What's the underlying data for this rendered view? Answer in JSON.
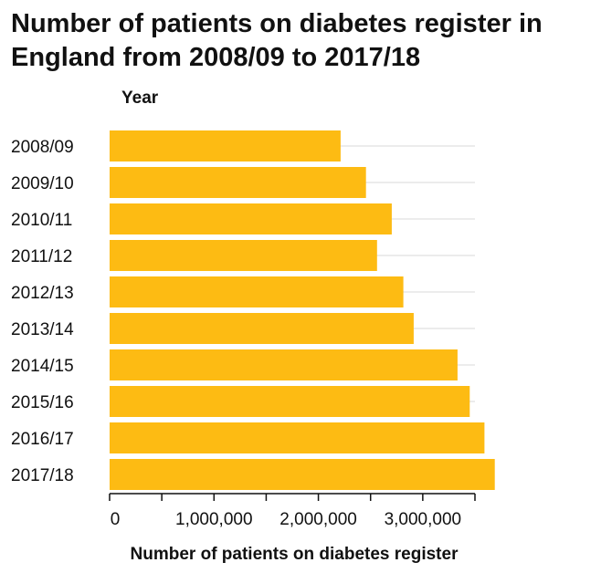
{
  "chart_data": {
    "type": "bar",
    "orientation": "horizontal",
    "title": "Number of patients on diabetes register in England from 2008/09 to 2017/18",
    "xlabel": "Number of patients on diabetes register",
    "ylabel": "Year",
    "categories": [
      "2008/09",
      "2009/10",
      "2010/11",
      "2011/12",
      "2012/13",
      "2013/14",
      "2014/15",
      "2015/16",
      "2016/17",
      "2017/18"
    ],
    "values": [
      2213000,
      2456000,
      2703000,
      2562000,
      2814000,
      2913000,
      3333000,
      3450000,
      3591000,
      3690000
    ],
    "xlim": [
      0,
      3500000
    ],
    "xticks": [
      0,
      1000000,
      2000000,
      3000000
    ],
    "xtick_labels": [
      "0",
      "1,000,000",
      "2,000,000",
      "3,000,000"
    ],
    "grid": true,
    "colors": {
      "bar": "#fdbb13",
      "grid": "#d9d9d9",
      "axis": "#111111"
    }
  }
}
